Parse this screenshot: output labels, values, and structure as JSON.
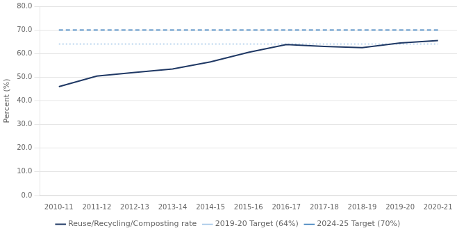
{
  "chart_data": {
    "type": "line",
    "categories": [
      "2010-11",
      "2011-12",
      "2012-13",
      "2013-14",
      "2014-15",
      "2015-16",
      "2016-17",
      "2017-18",
      "2018-19",
      "2019-20",
      "2020-21"
    ],
    "series": [
      {
        "name": "Reuse/Recycling/Composting rate",
        "color": "#1f3864",
        "line_style": "solid",
        "values": [
          46.0,
          50.5,
          52.0,
          53.5,
          56.5,
          60.5,
          63.8,
          63.0,
          62.5,
          64.5,
          65.5
        ]
      },
      {
        "name": "2019-20 Target (64%)",
        "type": "hline",
        "value": 64.0,
        "color": "#9dc3e6",
        "line_style": "dotted"
      },
      {
        "name": "2024-25 Target (70%)",
        "type": "hline",
        "value": 70.0,
        "color": "#2e75b6",
        "line_style": "dashed"
      }
    ],
    "ylabel": "Percent (%)",
    "ylim": [
      0.0,
      80.0
    ],
    "yticks": [
      {
        "value": 0,
        "label": "0.0"
      },
      {
        "value": 10,
        "label": "10.0"
      },
      {
        "value": 20,
        "label": "20.0"
      },
      {
        "value": 30,
        "label": "30.0"
      },
      {
        "value": 40,
        "label": "40.0"
      },
      {
        "value": 50,
        "label": "50.0"
      },
      {
        "value": 60,
        "label": "60.0"
      },
      {
        "value": 70,
        "label": "70.0"
      },
      {
        "value": 80,
        "label": "80.0"
      }
    ],
    "grid": "y",
    "legend": "bottom"
  }
}
